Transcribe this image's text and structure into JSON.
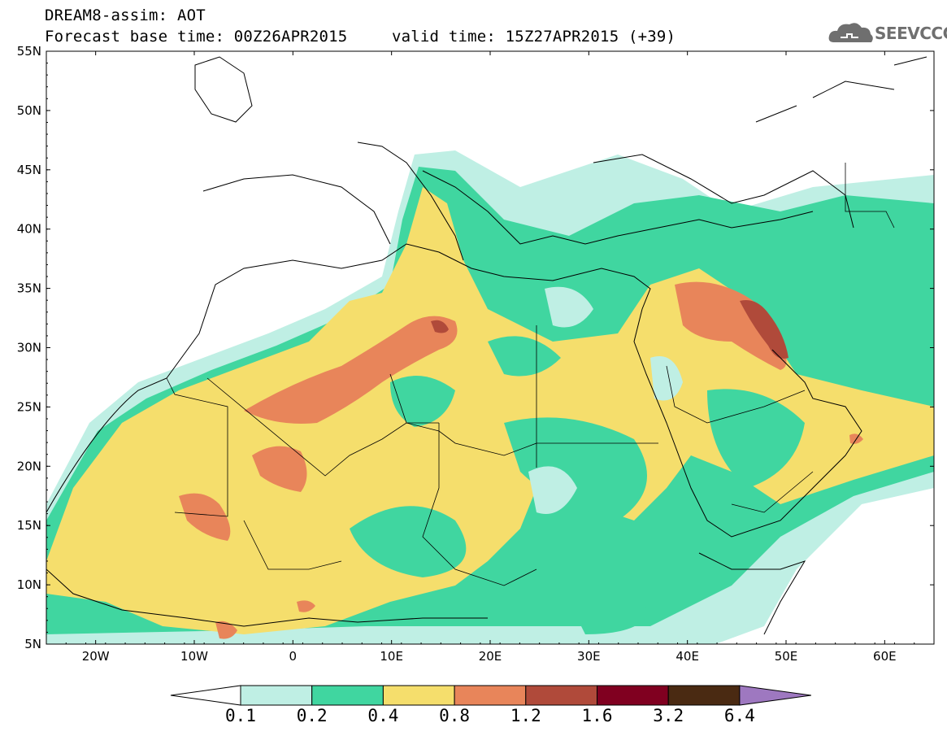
{
  "header": {
    "line1": "DREAM8-assim: AOT",
    "line2": "Forecast base time: 00Z26APR2015",
    "line3": "valid time: 15Z27APR2015 (+39)"
  },
  "logo": {
    "text": "SEEVCCC",
    "icon": "cloud-icon"
  },
  "map": {
    "lon_range": [
      -25,
      65
    ],
    "lat_range": [
      5,
      55
    ],
    "lat_labels": [
      "55N",
      "50N",
      "45N",
      "40N",
      "35N",
      "30N",
      "25N",
      "20N",
      "15N",
      "10N",
      "5N"
    ],
    "lon_labels": [
      "20W",
      "10W",
      "0",
      "10E",
      "20E",
      "30E",
      "40E",
      "50E",
      "60E"
    ],
    "variable": "AOT"
  },
  "colorbar": {
    "labels": [
      "0.1",
      "0.2",
      "0.4",
      "0.8",
      "1.2",
      "1.6",
      "3.2",
      "6.4"
    ],
    "colors": [
      "#ffffff",
      "#bfefe4",
      "#40d6a0",
      "#f5de6c",
      "#e8855a",
      "#b04a3a",
      "#800020",
      "#4a2a12",
      "#9e78c0"
    ]
  }
}
